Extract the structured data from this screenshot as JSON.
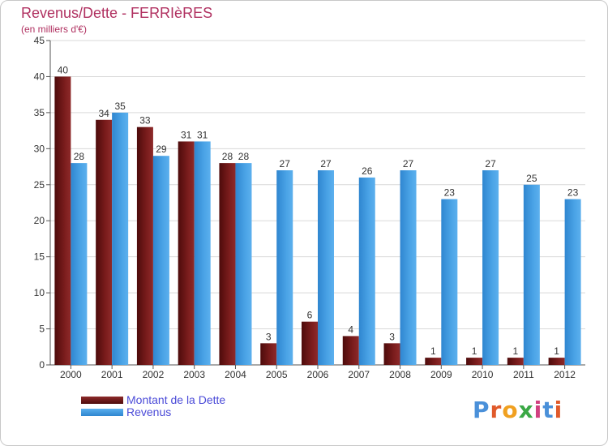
{
  "title": "Revenus/Dette - FERRIèRES",
  "subtitle": "(en milliers d'€)",
  "logo": {
    "text": "Proxiti",
    "colors": [
      "#4a90d9",
      "#e05a2b",
      "#f0a020",
      "#3aa845",
      "#d04080",
      "#4a90d9",
      "#e05a2b"
    ]
  },
  "chart_data": {
    "type": "bar",
    "categories": [
      "2000",
      "2001",
      "2002",
      "2003",
      "2004",
      "2005",
      "2006",
      "2007",
      "2008",
      "2009",
      "2010",
      "2011",
      "2012"
    ],
    "series": [
      {
        "name": "Montant de la Dette",
        "color": "#7a1c1c",
        "values": [
          40,
          34,
          33,
          31,
          28,
          3,
          6,
          4,
          3,
          1,
          1,
          1,
          1
        ]
      },
      {
        "name": "Revenus",
        "color": "#4aa3e6",
        "values": [
          28,
          35,
          29,
          31,
          28,
          27,
          27,
          26,
          27,
          23,
          27,
          25,
          23
        ]
      }
    ],
    "ylim": [
      0,
      45
    ],
    "yticks": [
      0,
      5,
      10,
      15,
      20,
      25,
      30,
      35,
      40,
      45
    ],
    "grid": true,
    "legend": "bottom-left"
  }
}
